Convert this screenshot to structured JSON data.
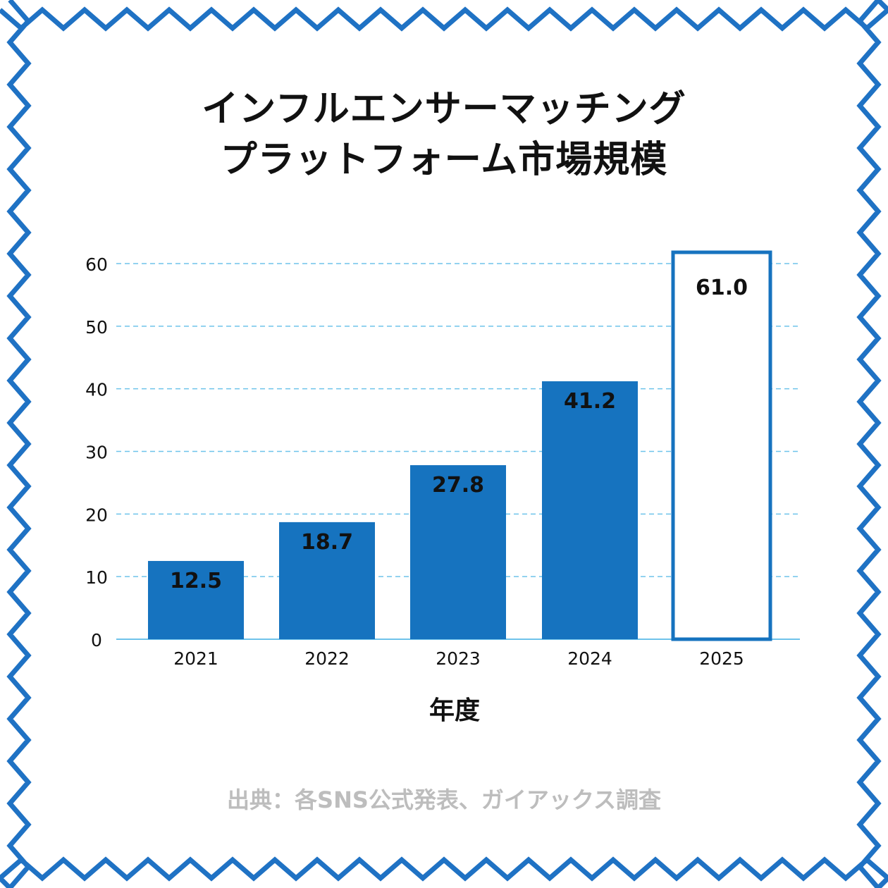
{
  "title": {
    "line1": "インフルエンサーマッチング",
    "line2": "プラットフォーム市場規模"
  },
  "source": "出典：各SNS公式発表、ガイアックス調査",
  "colors": {
    "accent": "#1673bf",
    "frame": "#1f72c4",
    "grid": "#6ec3ea",
    "source_text": "#bdbdbd"
  },
  "chart_data": {
    "type": "bar",
    "categories": [
      "2021",
      "2022",
      "2023",
      "2024",
      "2025"
    ],
    "values": [
      12.5,
      18.7,
      27.8,
      41.2,
      61.0
    ],
    "value_labels": [
      "12.5",
      "18.7",
      "27.8",
      "41.2",
      "61.0"
    ],
    "styles": [
      "filled",
      "filled",
      "filled",
      "filled",
      "outlined"
    ],
    "xlabel": "年度",
    "ylabel": "",
    "ylim": [
      0,
      60
    ],
    "yticks": [
      "0",
      "10",
      "20",
      "30",
      "40",
      "50",
      "60"
    ],
    "grid": true,
    "grid_style": "dashed"
  }
}
